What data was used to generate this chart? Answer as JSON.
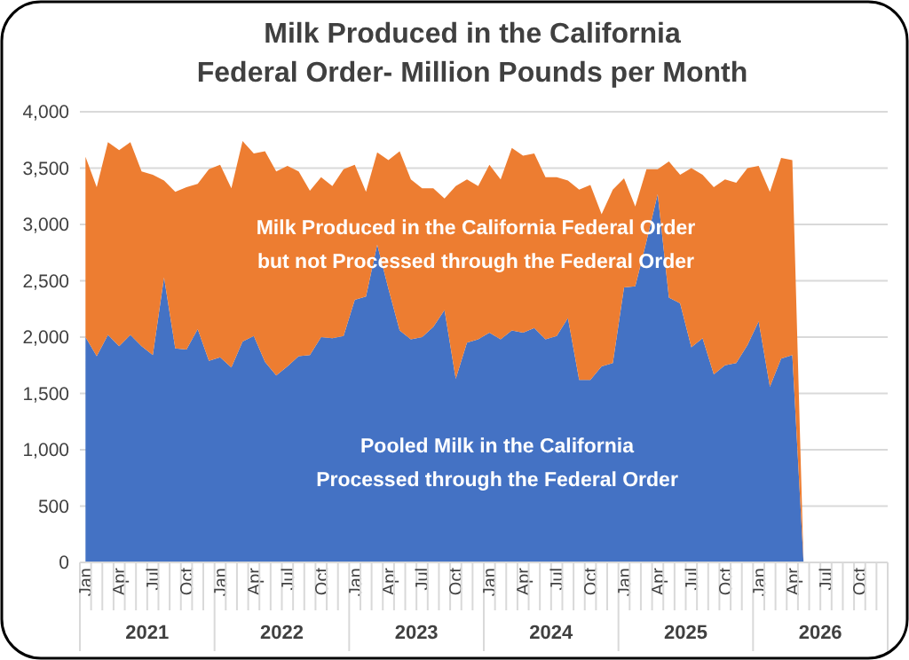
{
  "chart_data": {
    "type": "area",
    "stacked": true,
    "title": "Milk Produced in the California\nFederal Order- Million Pounds per Month",
    "categories": [
      "Jan",
      null,
      null,
      "Apr",
      null,
      null,
      "Jul",
      null,
      null,
      "Oct",
      null,
      null,
      "Jan",
      null,
      null,
      "Apr",
      null,
      null,
      "Jul",
      null,
      null,
      "Oct",
      null,
      null,
      "Jan",
      null,
      null,
      "Apr",
      null,
      null,
      "Jul",
      null,
      null,
      "Oct",
      null,
      null,
      "Jan",
      null,
      null,
      "Apr",
      null,
      null,
      "Jul",
      null,
      null,
      "Oct",
      null,
      null,
      "Jan",
      null,
      null,
      "Apr",
      null,
      null,
      "Jul",
      null,
      null,
      "Oct",
      null,
      null,
      "Jan",
      null,
      null,
      "Apr",
      null,
      null,
      "Jul",
      null,
      null,
      "Oct",
      null,
      null
    ],
    "series": [
      {
        "color": "#4472c4",
        "values": [
          2000,
          1830,
          2020,
          1920,
          2020,
          1920,
          1840,
          2530,
          1900,
          1890,
          2070,
          1790,
          1820,
          1730,
          1960,
          2010,
          1780,
          1660,
          1740,
          1830,
          1840,
          2000,
          1990,
          2010,
          2330,
          2360,
          2820,
          2430,
          2060,
          1980,
          2000,
          2090,
          2240,
          1630,
          1950,
          1980,
          2040,
          1980,
          2060,
          2040,
          2080,
          1980,
          2010,
          2170,
          1620,
          1620,
          1740,
          1770,
          2440,
          2450,
          2850,
          3270,
          2350,
          2300,
          1910,
          1990,
          1670,
          1750,
          1770,
          1930,
          2140,
          1560,
          1810,
          1840,
          0,
          null,
          null,
          null,
          null,
          null,
          null,
          null
        ]
      },
      {
        "color": "#ed7d31",
        "values": [
          1600,
          1500,
          1710,
          1740,
          1710,
          1550,
          1600,
          860,
          1390,
          1440,
          1290,
          1700,
          1710,
          1590,
          1780,
          1620,
          1870,
          1810,
          1780,
          1640,
          1460,
          1420,
          1350,
          1480,
          1200,
          930,
          820,
          1140,
          1590,
          1420,
          1320,
          1230,
          990,
          1710,
          1450,
          1360,
          1490,
          1420,
          1620,
          1570,
          1550,
          1440,
          1410,
          1220,
          1690,
          1730,
          1350,
          1540,
          970,
          710,
          640,
          220,
          1210,
          1140,
          1590,
          1450,
          1660,
          1650,
          1600,
          1570,
          1380,
          1730,
          1780,
          1730,
          0,
          null,
          null,
          null,
          null,
          null,
          null,
          null
        ]
      }
    ],
    "annotations": [
      "Pooled Milk in the California\nProcessed through the Federal Order",
      "Milk Produced in the California Federal Order\nbut not Processed through the Federal Order",
      "2021",
      "2022",
      "2023",
      "2024",
      "2025",
      "2026"
    ],
    "ylim": [
      0,
      4000
    ],
    "yticks": [
      0,
      {
        "value": 500,
        "label": "500"
      },
      {
        "value": 1000,
        "label": "1,000"
      },
      {
        "value": 1500,
        "label": "1,500"
      },
      {
        "value": 2000,
        "label": "2,000"
      },
      {
        "value": 2500,
        "label": "2,500"
      },
      {
        "value": 3000,
        "label": "3,000"
      },
      {
        "value": 3500,
        "label": "3,500"
      },
      {
        "value": 4000,
        "label": "4,000"
      }
    ],
    "grid": "y"
  }
}
